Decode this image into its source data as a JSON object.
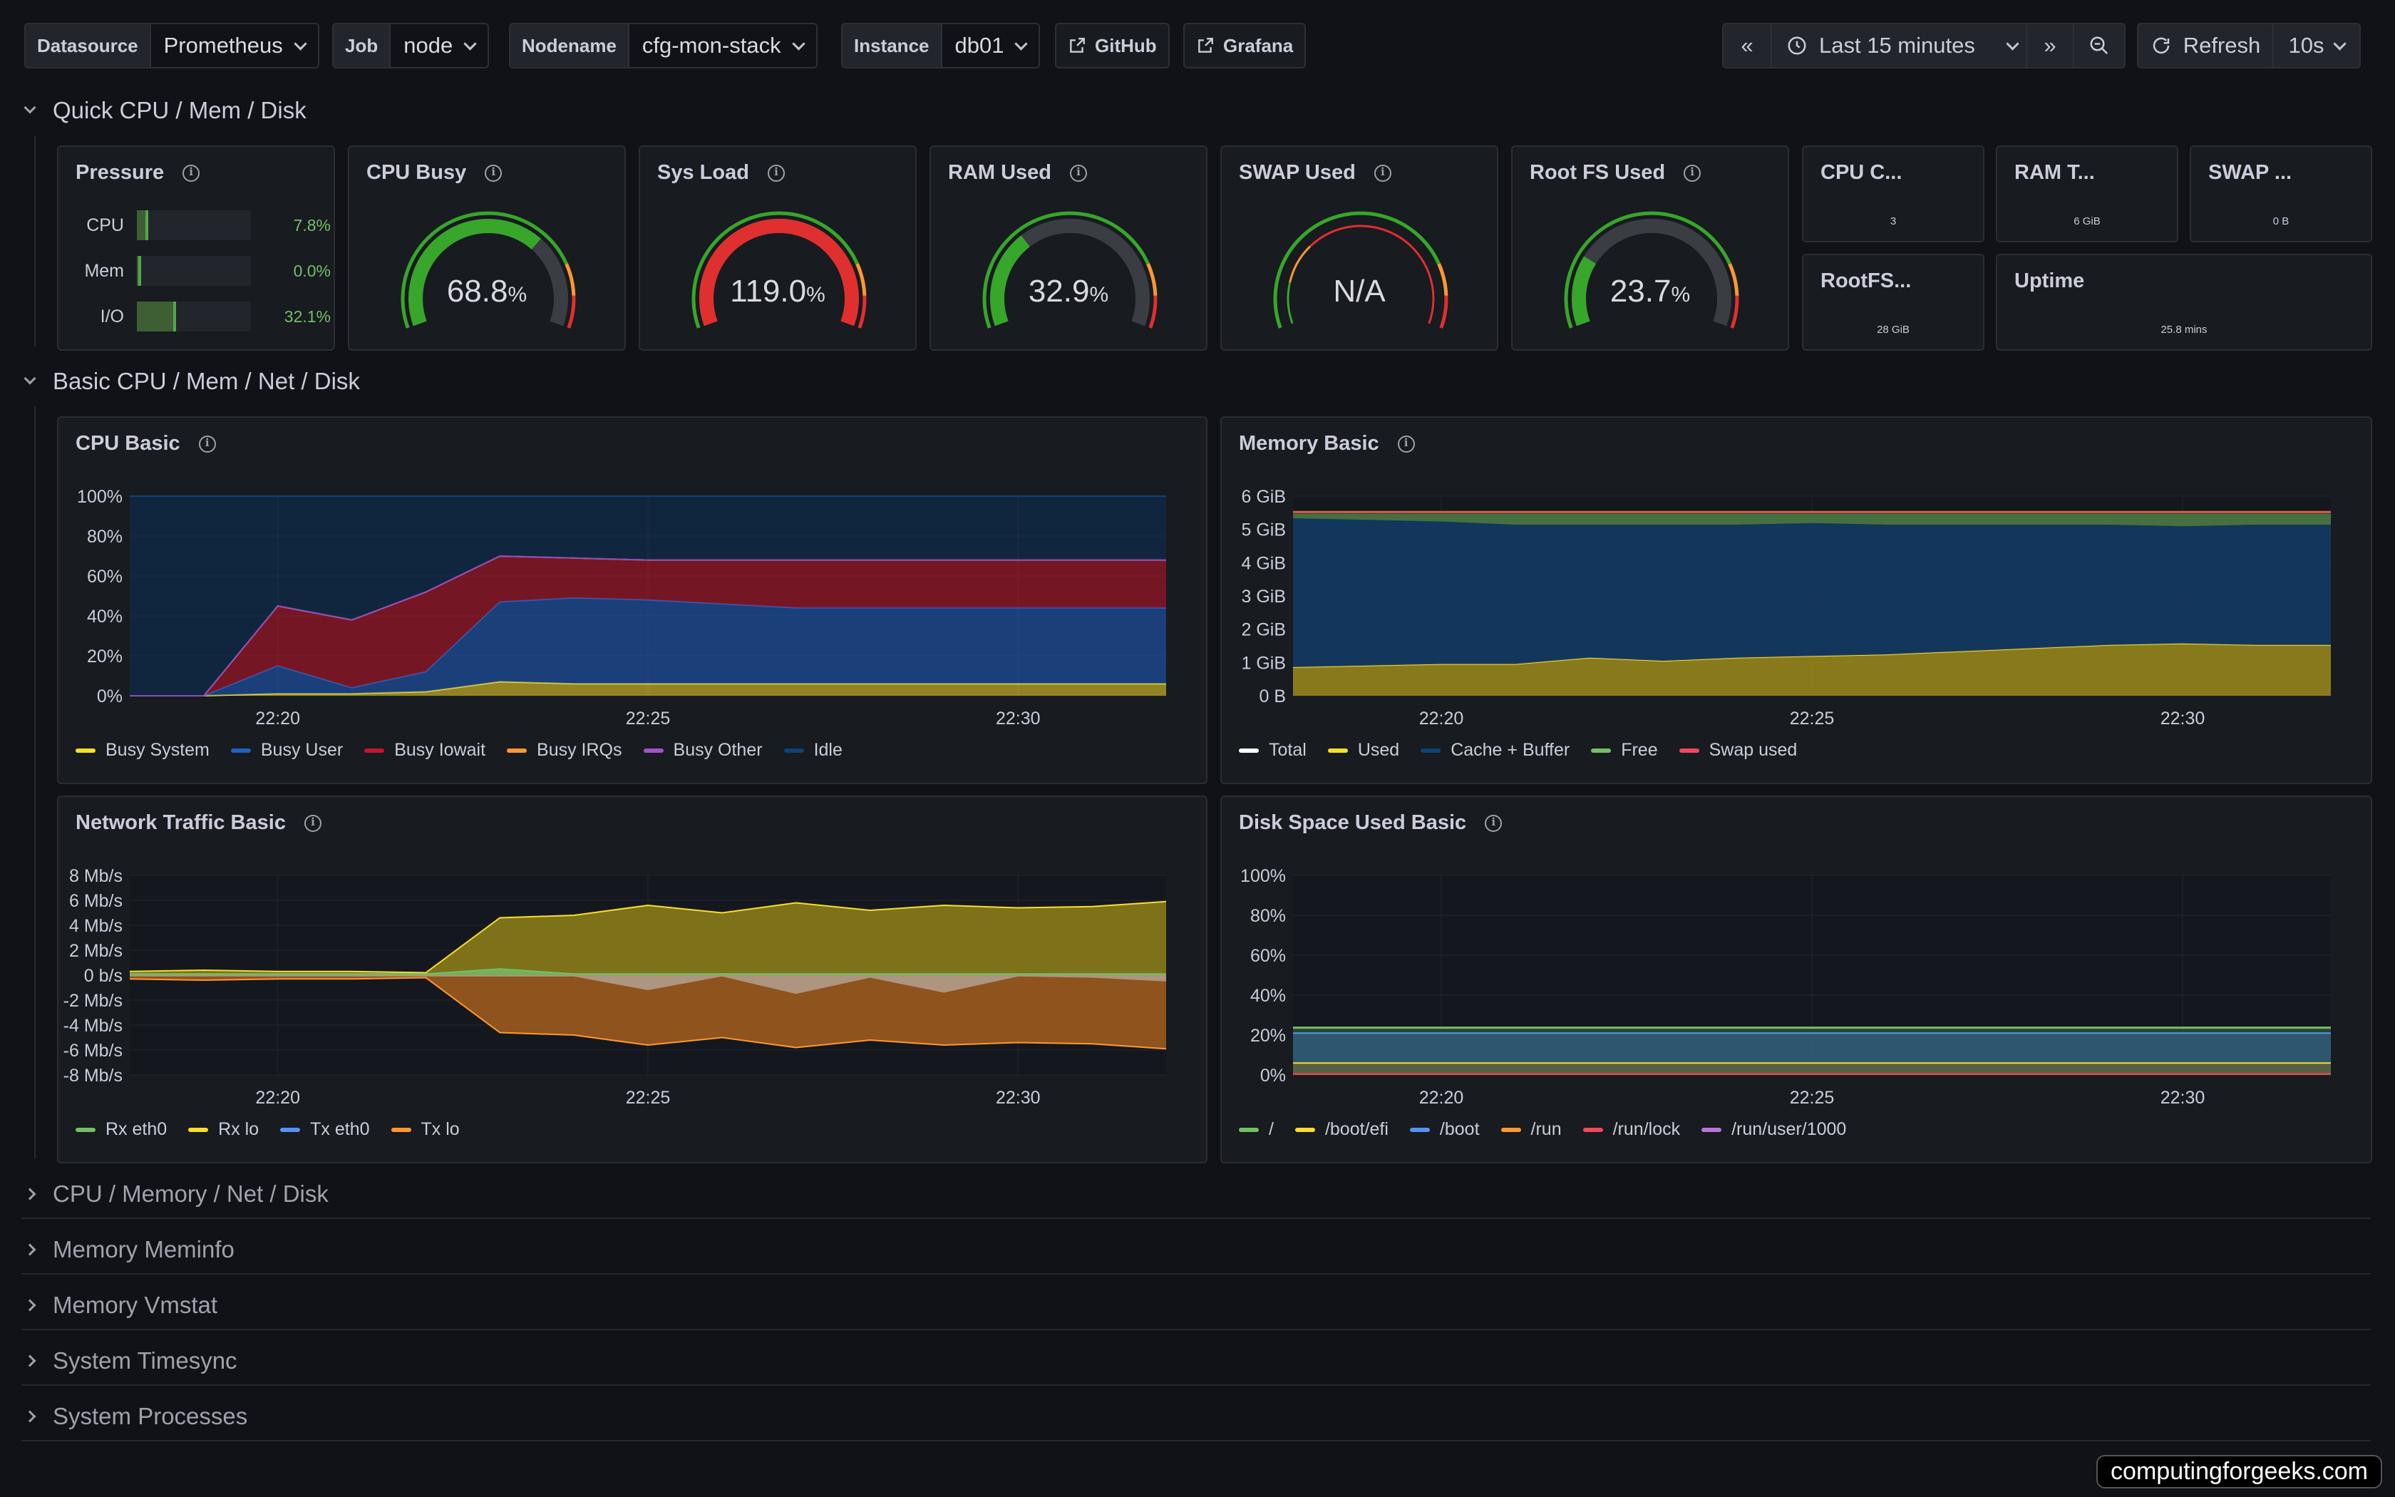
{
  "toolbar": {
    "variables": [
      {
        "label": "Datasource",
        "value": "Prometheus"
      },
      {
        "label": "Job",
        "value": "node"
      },
      {
        "label": "Nodename",
        "value": "cfg-mon-stack"
      },
      {
        "label": "Instance",
        "value": "db01"
      }
    ],
    "links": [
      "GitHub",
      "Grafana"
    ],
    "time_range": "Last 15 minutes",
    "refresh_label": "Refresh",
    "refresh_interval": "10s"
  },
  "sections": {
    "quick": "Quick CPU / Mem / Disk",
    "basic": "Basic CPU / Mem / Net / Disk",
    "collapsed": [
      "CPU / Memory / Net / Disk",
      "Memory Meminfo",
      "Memory Vmstat",
      "System Timesync",
      "System Processes"
    ]
  },
  "pressure": {
    "title": "Pressure",
    "rows": [
      {
        "label": "CPU",
        "value": "7.8%",
        "fraction": 0.078
      },
      {
        "label": "Mem",
        "value": "0.0%",
        "fraction": 0.0
      },
      {
        "label": "I/O",
        "value": "32.1%",
        "fraction": 0.321
      }
    ]
  },
  "gauges": [
    {
      "title": "CPU Busy",
      "value": "68.8",
      "unit": "%",
      "fraction": 0.688,
      "color": "#37a62b"
    },
    {
      "title": "Sys Load",
      "value": "119.0",
      "unit": "%",
      "fraction": 1.0,
      "color": "#e02f2f"
    },
    {
      "title": "RAM Used",
      "value": "32.9",
      "unit": "%",
      "fraction": 0.329,
      "color": "#37a62b"
    },
    {
      "title": "SWAP Used",
      "value": "N/A",
      "unit": "",
      "fraction": 0,
      "color": "#e02f2f"
    },
    {
      "title": "Root FS Used",
      "value": "23.7",
      "unit": "%",
      "fraction": 0.237,
      "color": "#37a62b"
    }
  ],
  "stats": [
    {
      "title": "CPU C...",
      "value": "3"
    },
    {
      "title": "RAM T...",
      "value": "6 GiB"
    },
    {
      "title": "SWAP ...",
      "value": "0 B"
    },
    {
      "title": "RootFS...",
      "value": "28 GiB"
    },
    {
      "title": "Uptime",
      "value": "25.8 mins"
    }
  ],
  "colors": {
    "green": "#73bf69",
    "yellow": "#fade2a",
    "blue": "#5794f2",
    "orange": "#ff9830",
    "red": "#f2495c",
    "purple": "#b877d9",
    "dark_blue": "#1f60c4",
    "dark_red": "#c4162a"
  },
  "chart_data": [
    {
      "type": "area",
      "title": "CPU Basic",
      "x": [
        "22:18",
        "22:19",
        "22:20",
        "22:21",
        "22:22",
        "22:23",
        "22:24",
        "22:25",
        "22:26",
        "22:27",
        "22:28",
        "22:29",
        "22:30",
        "22:31",
        "22:32"
      ],
      "x_ticks": [
        "22:20",
        "22:25",
        "22:30"
      ],
      "y_ticks": [
        "100%",
        "80%",
        "60%",
        "40%",
        "20%",
        "0%"
      ],
      "ylim": [
        0,
        100
      ],
      "series": [
        {
          "name": "Busy System",
          "color": "#fade2a",
          "values": [
            0,
            0,
            1,
            1,
            2,
            7,
            6,
            6,
            6,
            6,
            6,
            6,
            6,
            6,
            6
          ]
        },
        {
          "name": "Busy User",
          "color": "#1f60c4",
          "values": [
            0,
            0,
            14,
            3,
            10,
            40,
            43,
            42,
            40,
            38,
            38,
            38,
            38,
            38,
            38
          ]
        },
        {
          "name": "Busy Iowait",
          "color": "#c4162a",
          "values": [
            0,
            0,
            30,
            34,
            40,
            23,
            20,
            20,
            22,
            24,
            24,
            24,
            24,
            24,
            24
          ]
        },
        {
          "name": "Busy IRQs",
          "color": "#ff9830",
          "values": [
            0,
            0,
            0,
            0,
            0,
            0,
            0,
            0,
            0,
            0,
            0,
            0,
            0,
            0,
            0
          ]
        },
        {
          "name": "Busy Other",
          "color": "#a352cc",
          "values": [
            0,
            0,
            0,
            0,
            0,
            0,
            0,
            0,
            0,
            0,
            0,
            0,
            0,
            0,
            0
          ]
        },
        {
          "name": "Idle",
          "color": "#0a437c",
          "values": [
            100,
            100,
            55,
            62,
            48,
            30,
            31,
            32,
            32,
            32,
            32,
            32,
            32,
            32,
            32
          ]
        }
      ]
    },
    {
      "type": "area",
      "title": "Memory Basic",
      "x": [
        "22:18",
        "22:19",
        "22:20",
        "22:21",
        "22:22",
        "22:23",
        "22:24",
        "22:25",
        "22:26",
        "22:27",
        "22:28",
        "22:29",
        "22:30",
        "22:31",
        "22:32"
      ],
      "x_ticks": [
        "22:20",
        "22:25",
        "22:30"
      ],
      "y_ticks": [
        "6 GiB",
        "5 GiB",
        "4 GiB",
        "3 GiB",
        "2 GiB",
        "1 GiB",
        "0 B"
      ],
      "ylim": [
        0,
        6.3
      ],
      "series": [
        {
          "name": "Total",
          "color": "#ffffff",
          "values": [
            5.8,
            5.8,
            5.8,
            5.8,
            5.8,
            5.8,
            5.8,
            5.8,
            5.8,
            5.8,
            5.8,
            5.8,
            5.8,
            5.8,
            5.8
          ]
        },
        {
          "name": "Used",
          "color": "#fade2a",
          "values": [
            0.9,
            0.95,
            1.0,
            1.0,
            1.2,
            1.1,
            1.2,
            1.25,
            1.3,
            1.4,
            1.5,
            1.6,
            1.65,
            1.6,
            1.6
          ]
        },
        {
          "name": "Cache + Buffer",
          "color": "#0a437c",
          "values": [
            4.7,
            4.6,
            4.5,
            4.4,
            4.2,
            4.3,
            4.2,
            4.2,
            4.1,
            4.0,
            3.9,
            3.8,
            3.7,
            3.8,
            3.8
          ]
        },
        {
          "name": "Free",
          "color": "#73bf69",
          "values": [
            0.15,
            0.2,
            0.25,
            0.35,
            0.35,
            0.35,
            0.35,
            0.3,
            0.35,
            0.35,
            0.35,
            0.35,
            0.4,
            0.35,
            0.35
          ]
        },
        {
          "name": "Swap used",
          "color": "#f2495c",
          "values": [
            0,
            0,
            0,
            0,
            0,
            0,
            0,
            0,
            0,
            0,
            0,
            0,
            0,
            0,
            0
          ]
        }
      ]
    },
    {
      "type": "area",
      "title": "Network Traffic Basic",
      "x": [
        "22:18",
        "22:19",
        "22:20",
        "22:21",
        "22:22",
        "22:23",
        "22:24",
        "22:25",
        "22:26",
        "22:27",
        "22:28",
        "22:29",
        "22:30",
        "22:31",
        "22:32"
      ],
      "x_ticks": [
        "22:20",
        "22:25",
        "22:30"
      ],
      "y_ticks": [
        "8 Mb/s",
        "6 Mb/s",
        "4 Mb/s",
        "2 Mb/s",
        "0 b/s",
        "-2 Mb/s",
        "-4 Mb/s",
        "-6 Mb/s",
        "-8 Mb/s"
      ],
      "ylim": [
        -8,
        8
      ],
      "series": [
        {
          "name": "Rx eth0",
          "color": "#73bf69",
          "values": [
            0.1,
            0.1,
            0.1,
            0.1,
            0.1,
            0.5,
            0.1,
            0.1,
            0.1,
            0.1,
            0.1,
            0.1,
            0.1,
            0.1,
            0.1
          ]
        },
        {
          "name": "Rx lo",
          "color": "#fade2a",
          "values": [
            0.3,
            0.4,
            0.3,
            0.3,
            0.2,
            4.6,
            4.8,
            5.6,
            5.0,
            5.8,
            5.2,
            5.6,
            5.4,
            5.5,
            5.9
          ]
        },
        {
          "name": "Tx eth0",
          "color": "#5794f2",
          "values": [
            -0.1,
            -0.1,
            -0.1,
            -0.1,
            -0.1,
            -0.1,
            -0.1,
            -1.2,
            -0.1,
            -1.5,
            -0.2,
            -1.4,
            -0.1,
            -0.2,
            -0.5
          ]
        },
        {
          "name": "Tx lo",
          "color": "#ff9830",
          "values": [
            -0.3,
            -0.4,
            -0.3,
            -0.3,
            -0.2,
            -4.6,
            -4.8,
            -5.6,
            -5.0,
            -5.8,
            -5.2,
            -5.6,
            -5.4,
            -5.5,
            -5.9
          ]
        }
      ]
    },
    {
      "type": "area",
      "title": "Disk Space Used Basic",
      "x": [
        "22:18",
        "22:19",
        "22:20",
        "22:21",
        "22:22",
        "22:23",
        "22:24",
        "22:25",
        "22:26",
        "22:27",
        "22:28",
        "22:29",
        "22:30",
        "22:31",
        "22:32"
      ],
      "x_ticks": [
        "22:20",
        "22:25",
        "22:30"
      ],
      "y_ticks": [
        "100%",
        "80%",
        "60%",
        "40%",
        "20%",
        "0%"
      ],
      "ylim": [
        0,
        100
      ],
      "series": [
        {
          "name": "/",
          "color": "#73bf69",
          "values": [
            23.7,
            23.7,
            23.7,
            23.7,
            23.7,
            23.7,
            23.7,
            23.7,
            23.7,
            23.7,
            23.7,
            23.7,
            23.7,
            23.7,
            23.7
          ]
        },
        {
          "name": "/boot/efi",
          "color": "#fade2a",
          "values": [
            6,
            6,
            6,
            6,
            6,
            6,
            6,
            6,
            6,
            6,
            6,
            6,
            6,
            6,
            6
          ]
        },
        {
          "name": "/boot",
          "color": "#5794f2",
          "values": [
            21,
            21,
            21,
            21,
            21,
            21,
            21,
            21,
            21,
            21,
            21,
            21,
            21,
            21,
            21
          ]
        },
        {
          "name": "/run",
          "color": "#ff9830",
          "values": [
            0.5,
            0.5,
            0.5,
            0.5,
            0.5,
            0.5,
            0.5,
            0.5,
            0.5,
            0.5,
            0.5,
            0.5,
            0.5,
            0.5,
            0.5
          ]
        },
        {
          "name": "/run/lock",
          "color": "#f2495c",
          "values": [
            0,
            0,
            0,
            0,
            0,
            0,
            0,
            0,
            0,
            0,
            0,
            0,
            0,
            0,
            0
          ]
        },
        {
          "name": "/run/user/1000",
          "color": "#b877d9",
          "values": [
            0,
            0,
            0,
            0,
            0,
            0,
            0,
            0,
            0,
            0,
            0,
            0,
            0,
            0,
            0
          ]
        }
      ]
    }
  ],
  "watermark": "computingforgeeks.com"
}
